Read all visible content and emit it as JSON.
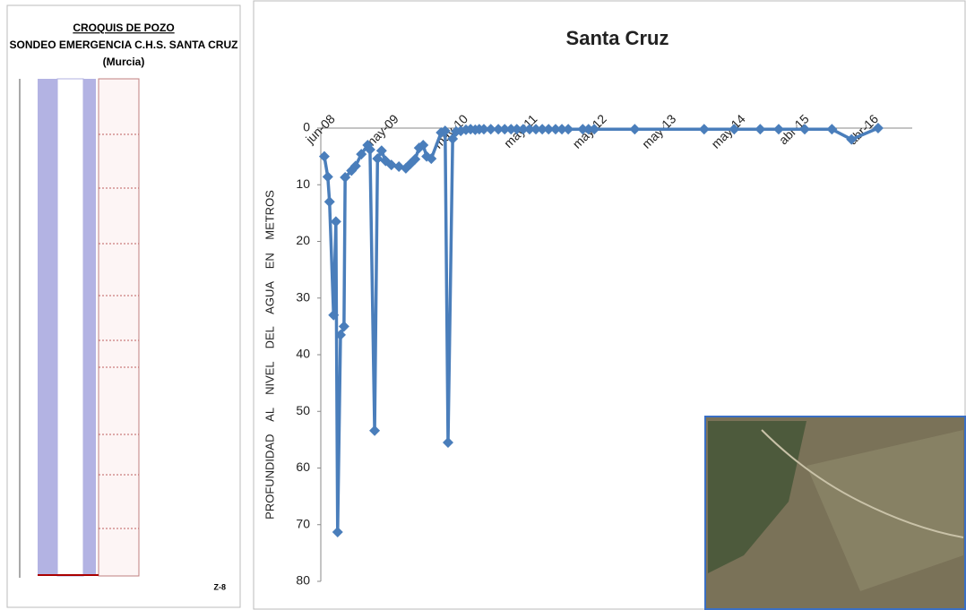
{
  "well_diagram": {
    "title": "CROQUIS DE POZO",
    "subtitle": "SONDEO EMERGENCIA C.H.S. SANTA CRUZ",
    "location": "(Murcia)",
    "code": "Z-8"
  },
  "chart_data": {
    "type": "line",
    "title": "Santa Cruz",
    "y_label": "PROFUNDIDAD    AL    NIVEL    DEL    AGUA    EN    METROS",
    "x": [
      0.3,
      0.9,
      1.2,
      1.9,
      2.3,
      2.6,
      3.1,
      3.7,
      3.9,
      5.0,
      5.7,
      6.7,
      7.8,
      8.2,
      9.0,
      9.5,
      10.2,
      10.9,
      11.9,
      13.2,
      14.4,
      15.2,
      16.0,
      16.7,
      17.4,
      18.0,
      18.8,
      20.5,
      21.2,
      21.7,
      22.5,
      23.1,
      23.9,
      24.8,
      25.6,
      26.4,
      27.1,
      27.9,
      29.1,
      30.4,
      31.5,
      32.6,
      33.6,
      34.7,
      35.8,
      36.9,
      38.0,
      39.1,
      40.3,
      41.4,
      42.5,
      45.0,
      46.0,
      47.0,
      54.0,
      66.0,
      71.2,
      75.7,
      78.9,
      83.4,
      88.1,
      91.5,
      96.1
    ],
    "series": [
      {
        "color": "#4a7ebb",
        "values": [
          5,
          8.6,
          13,
          33,
          16.5,
          71.3,
          36.5,
          35,
          8.7,
          7.5,
          6.7,
          4.6,
          3,
          3.8,
          53.4,
          5.4,
          4,
          5.8,
          6.5,
          6.8,
          7.1,
          6.3,
          5.5,
          3.5,
          3,
          5,
          5.4,
          0.8,
          0.5,
          55.5,
          1.9,
          0.6,
          0.5,
          0.3,
          0.2,
          0.3,
          0.2,
          0.2,
          0.2,
          0.2,
          0.2,
          0.2,
          0.2,
          0.2,
          0.2,
          0.2,
          0.2,
          0.2,
          0.2,
          0.2,
          0.2,
          0.2,
          0.2,
          0.2,
          0.2,
          0.2,
          0.2,
          0.2,
          0.2,
          0.2,
          0.2,
          2,
          0
        ]
      }
    ],
    "xlim": [
      0,
      102
    ],
    "xticks": [
      {
        "value": 0,
        "label": "jun-08"
      },
      {
        "value": 11,
        "label": "may-09"
      },
      {
        "value": 23,
        "label": "may-10"
      },
      {
        "value": 35,
        "label": "may-11"
      },
      {
        "value": 47,
        "label": "may-12"
      },
      {
        "value": 59,
        "label": "may-13"
      },
      {
        "value": 71,
        "label": "may-14"
      },
      {
        "value": 82,
        "label": "abr-15"
      },
      {
        "value": 94,
        "label": "abr-16"
      }
    ],
    "ylim": [
      0,
      80
    ],
    "yticks": [
      0,
      10,
      20,
      30,
      40,
      50,
      60,
      70,
      80
    ],
    "y_inverted": true
  }
}
